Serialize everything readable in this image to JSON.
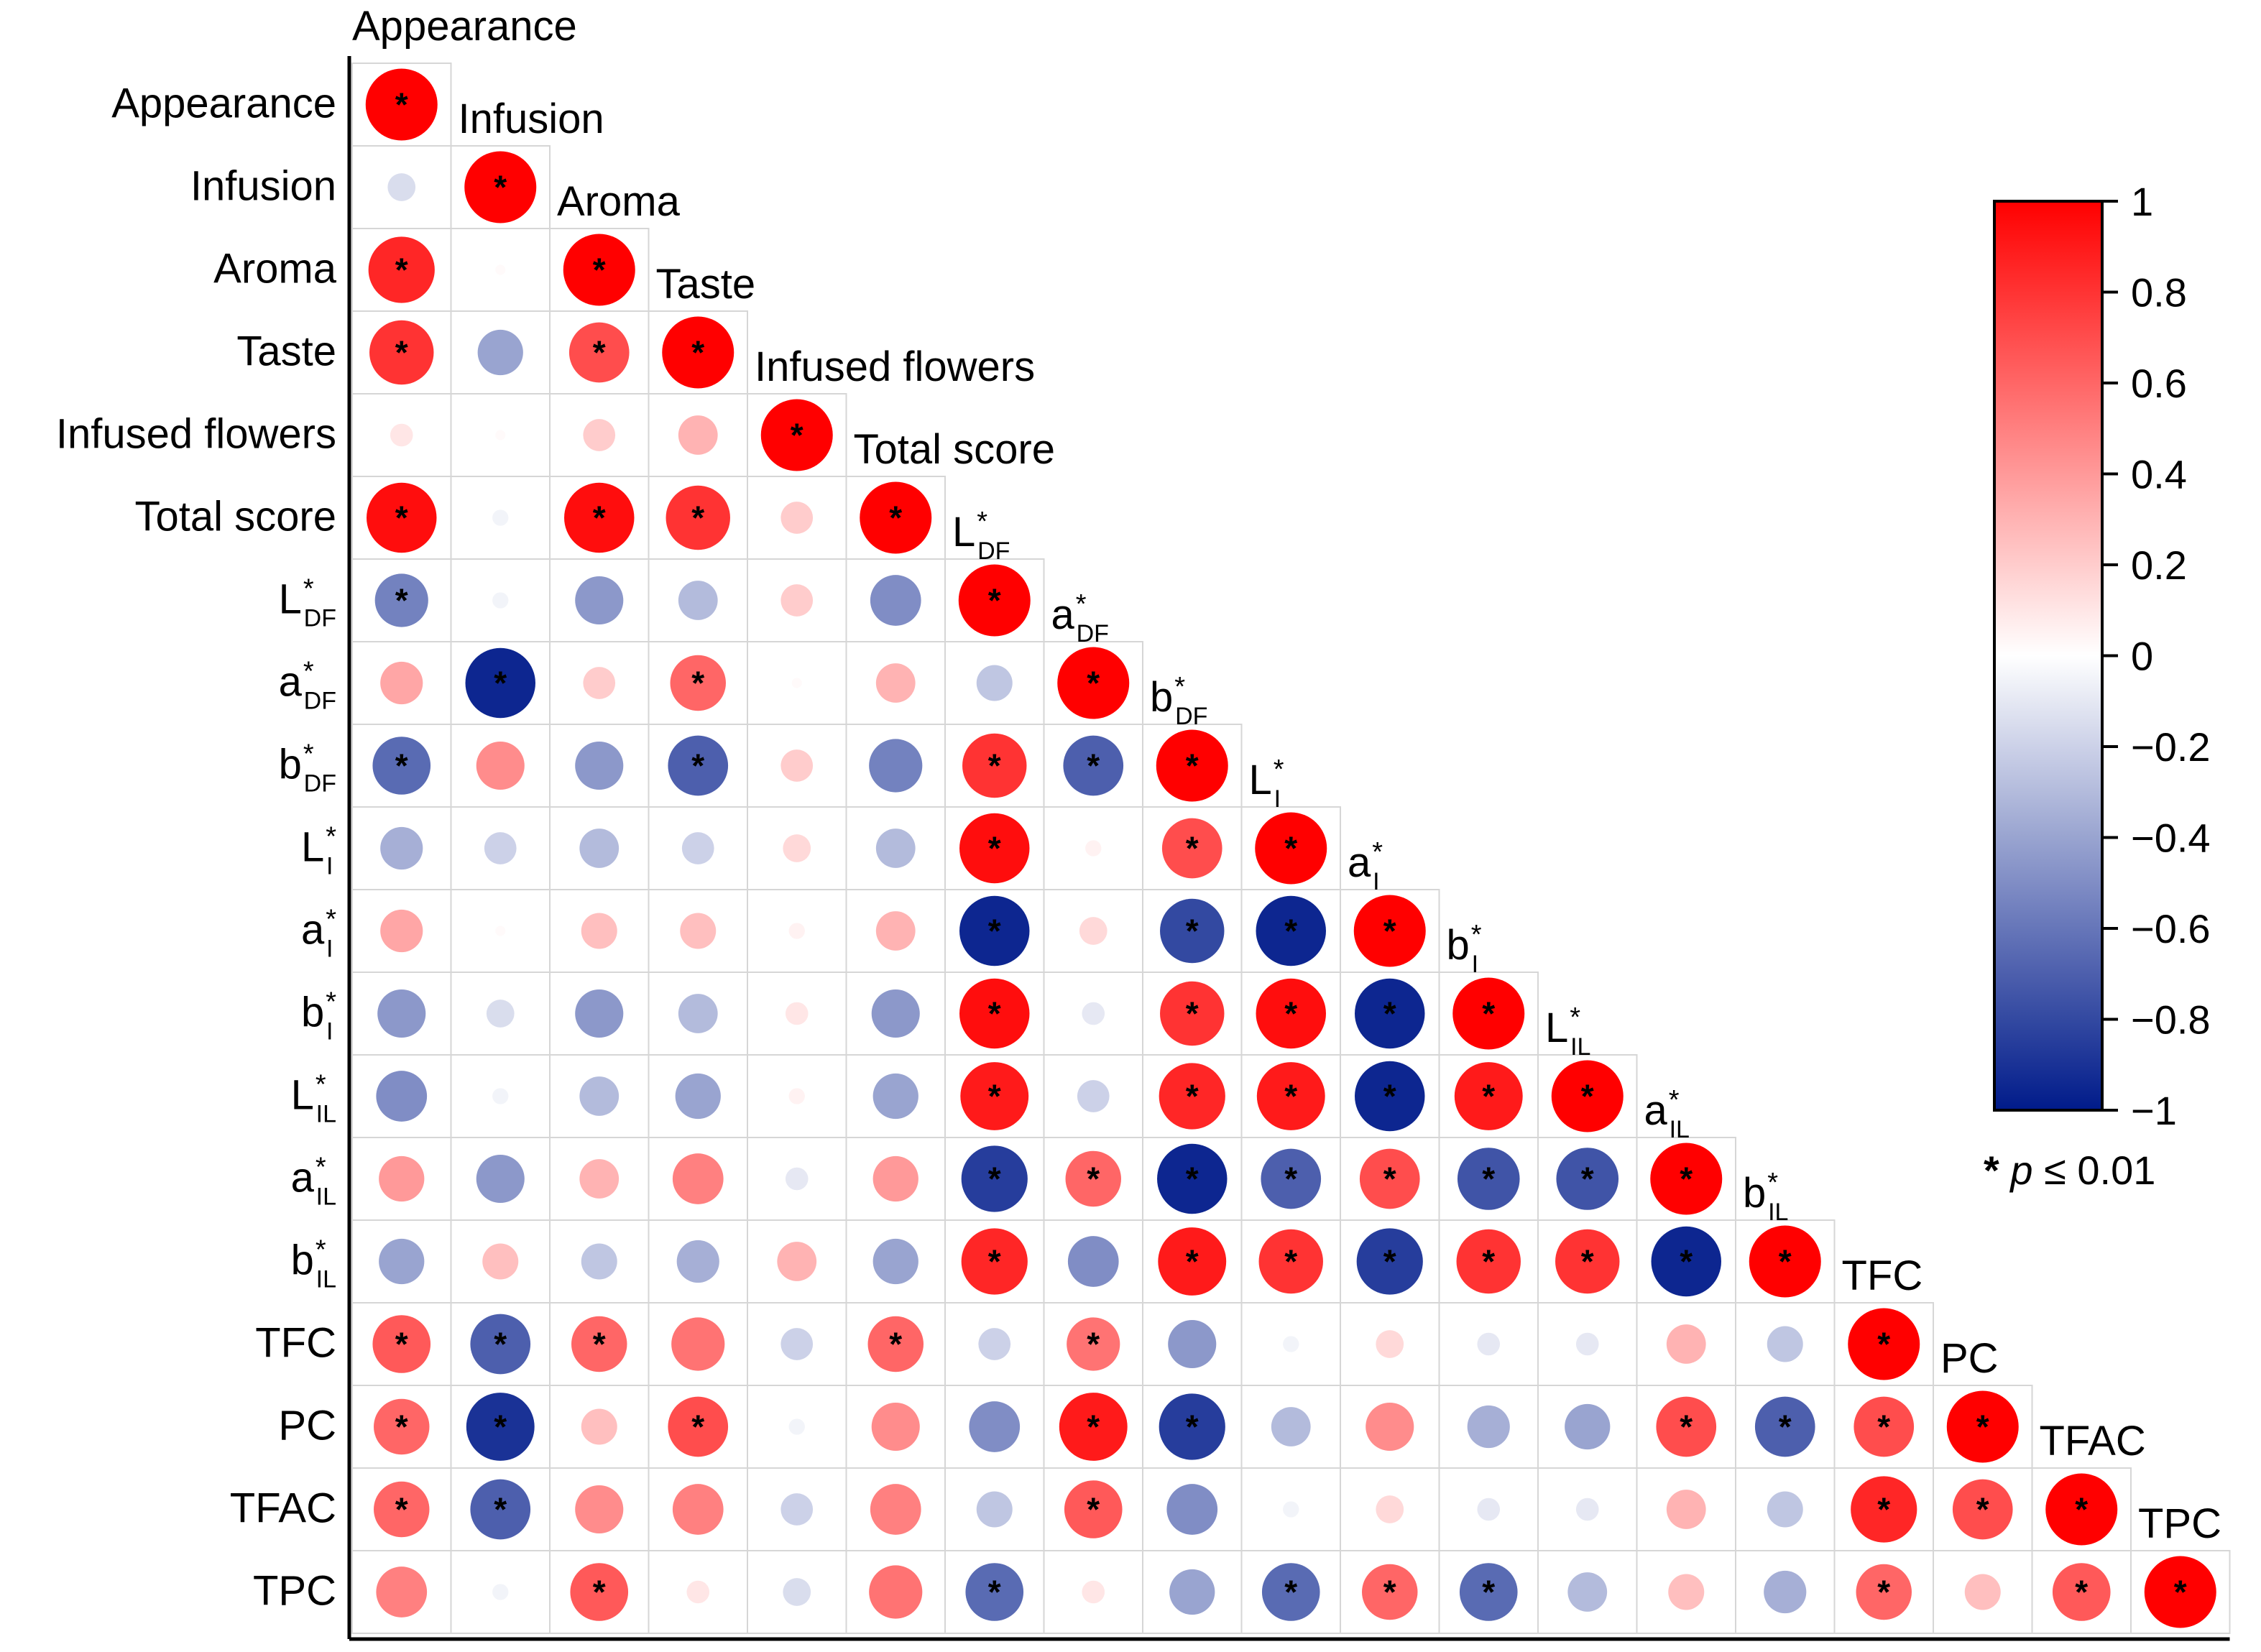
{
  "chart_data": {
    "type": "heatmap",
    "subtype": "correlation-circles-lower-triangle",
    "variables": [
      {
        "base": "Appearance",
        "sub": "",
        "star": false
      },
      {
        "base": "Infusion",
        "sub": "",
        "star": false
      },
      {
        "base": "Aroma",
        "sub": "",
        "star": false
      },
      {
        "base": "Taste",
        "sub": "",
        "star": false
      },
      {
        "base": "Infused flowers",
        "sub": "",
        "star": false
      },
      {
        "base": "Total score",
        "sub": "",
        "star": false
      },
      {
        "base": "L",
        "sub": "DF",
        "star": true
      },
      {
        "base": "a",
        "sub": "DF",
        "star": true
      },
      {
        "base": "b",
        "sub": "DF",
        "star": true
      },
      {
        "base": "L",
        "sub": "I",
        "star": true
      },
      {
        "base": "a",
        "sub": "I",
        "star": true
      },
      {
        "base": "b",
        "sub": "I",
        "star": true
      },
      {
        "base": "L",
        "sub": "IL",
        "star": true
      },
      {
        "base": "a",
        "sub": "IL",
        "star": true
      },
      {
        "base": "b",
        "sub": "IL",
        "star": true
      },
      {
        "base": "TFC",
        "sub": "",
        "star": false
      },
      {
        "base": "PC",
        "sub": "",
        "star": false
      },
      {
        "base": "TFAC",
        "sub": "",
        "star": false
      },
      {
        "base": "TPC",
        "sub": "",
        "star": false
      }
    ],
    "matrix": [
      [
        1.0
      ],
      [
        -0.15,
        1.0
      ],
      [
        0.85,
        0.02,
        1.0
      ],
      [
        0.8,
        -0.4,
        0.7,
        1.0
      ],
      [
        0.1,
        0.02,
        0.2,
        0.3,
        1.0
      ],
      [
        0.95,
        -0.05,
        0.95,
        0.8,
        0.2,
        1.0
      ],
      [
        -0.55,
        -0.05,
        -0.45,
        -0.3,
        0.2,
        -0.5,
        1.0
      ],
      [
        0.35,
        -0.95,
        0.2,
        0.6,
        0.02,
        0.3,
        -0.25,
        1.0
      ],
      [
        -0.65,
        0.45,
        -0.45,
        -0.7,
        0.2,
        -0.55,
        0.8,
        -0.7,
        1.0
      ],
      [
        -0.35,
        -0.2,
        -0.3,
        -0.2,
        0.15,
        -0.3,
        0.95,
        0.05,
        0.7,
        1.0
      ],
      [
        0.35,
        0.02,
        0.25,
        0.25,
        0.05,
        0.3,
        -0.95,
        0.15,
        -0.8,
        -0.95,
        1.0
      ],
      [
        -0.45,
        -0.15,
        -0.45,
        -0.3,
        0.1,
        -0.45,
        0.95,
        -0.1,
        0.8,
        0.95,
        -0.95,
        1.0
      ],
      [
        -0.5,
        -0.05,
        -0.3,
        -0.4,
        0.05,
        -0.4,
        0.9,
        -0.2,
        0.85,
        0.9,
        -0.95,
        0.9,
        1.0
      ],
      [
        0.4,
        -0.45,
        0.3,
        0.5,
        -0.1,
        0.4,
        -0.85,
        0.6,
        -0.95,
        -0.7,
        0.7,
        -0.75,
        -0.75,
        1.0
      ],
      [
        -0.4,
        0.25,
        -0.25,
        -0.35,
        0.3,
        -0.4,
        0.85,
        -0.5,
        0.9,
        0.8,
        -0.85,
        0.8,
        0.8,
        -0.95,
        1.0
      ],
      [
        0.65,
        -0.7,
        0.6,
        0.55,
        -0.2,
        0.6,
        -0.2,
        0.55,
        -0.45,
        -0.05,
        0.15,
        -0.1,
        -0.1,
        0.3,
        -0.25,
        1.0
      ],
      [
        0.6,
        -0.9,
        0.25,
        0.7,
        -0.05,
        0.45,
        -0.5,
        0.9,
        -0.85,
        -0.3,
        0.45,
        -0.35,
        -0.4,
        0.7,
        -0.7,
        0.7,
        1.0
      ],
      [
        0.6,
        -0.7,
        0.45,
        0.5,
        -0.2,
        0.5,
        -0.25,
        0.65,
        -0.5,
        -0.05,
        0.15,
        -0.1,
        -0.1,
        0.3,
        -0.25,
        0.85,
        0.7,
        1.0
      ],
      [
        0.5,
        -0.05,
        0.65,
        0.1,
        -0.15,
        0.55,
        -0.65,
        0.1,
        -0.4,
        -0.65,
        0.6,
        -0.65,
        -0.3,
        0.25,
        -0.35,
        0.6,
        0.25,
        0.65,
        1.0
      ]
    ],
    "significant": [
      [
        0,
        0
      ],
      [
        1,
        1
      ],
      [
        2,
        0
      ],
      [
        2,
        2
      ],
      [
        3,
        0
      ],
      [
        3,
        2
      ],
      [
        3,
        3
      ],
      [
        4,
        4
      ],
      [
        5,
        0
      ],
      [
        5,
        2
      ],
      [
        5,
        3
      ],
      [
        5,
        5
      ],
      [
        6,
        0
      ],
      [
        6,
        6
      ],
      [
        7,
        1
      ],
      [
        7,
        3
      ],
      [
        7,
        7
      ],
      [
        8,
        0
      ],
      [
        8,
        3
      ],
      [
        8,
        6
      ],
      [
        8,
        7
      ],
      [
        8,
        8
      ],
      [
        9,
        6
      ],
      [
        9,
        8
      ],
      [
        9,
        9
      ],
      [
        10,
        6
      ],
      [
        10,
        8
      ],
      [
        10,
        9
      ],
      [
        10,
        10
      ],
      [
        11,
        6
      ],
      [
        11,
        8
      ],
      [
        11,
        9
      ],
      [
        11,
        10
      ],
      [
        11,
        11
      ],
      [
        12,
        6
      ],
      [
        12,
        8
      ],
      [
        12,
        9
      ],
      [
        12,
        10
      ],
      [
        12,
        11
      ],
      [
        12,
        12
      ],
      [
        13,
        6
      ],
      [
        13,
        7
      ],
      [
        13,
        8
      ],
      [
        13,
        9
      ],
      [
        13,
        10
      ],
      [
        13,
        11
      ],
      [
        13,
        12
      ],
      [
        13,
        13
      ],
      [
        14,
        6
      ],
      [
        14,
        8
      ],
      [
        14,
        9
      ],
      [
        14,
        10
      ],
      [
        14,
        11
      ],
      [
        14,
        12
      ],
      [
        14,
        13
      ],
      [
        14,
        14
      ],
      [
        15,
        0
      ],
      [
        15,
        1
      ],
      [
        15,
        2
      ],
      [
        15,
        5
      ],
      [
        15,
        7
      ],
      [
        15,
        15
      ],
      [
        16,
        0
      ],
      [
        16,
        1
      ],
      [
        16,
        3
      ],
      [
        16,
        7
      ],
      [
        16,
        8
      ],
      [
        16,
        13
      ],
      [
        16,
        14
      ],
      [
        16,
        15
      ],
      [
        16,
        16
      ],
      [
        17,
        0
      ],
      [
        17,
        1
      ],
      [
        17,
        7
      ],
      [
        17,
        15
      ],
      [
        17,
        16
      ],
      [
        17,
        17
      ],
      [
        18,
        2
      ],
      [
        18,
        6
      ],
      [
        18,
        9
      ],
      [
        18,
        10
      ],
      [
        18,
        11
      ],
      [
        18,
        15
      ],
      [
        18,
        17
      ],
      [
        18,
        18
      ]
    ],
    "significance_symbol": "*",
    "color_scale": {
      "min": -1,
      "max": 1,
      "ticks": [
        1,
        0.8,
        0.6,
        0.4,
        0.2,
        0,
        -0.2,
        -0.4,
        -0.6,
        -0.8,
        -1
      ],
      "tick_labels": [
        "1",
        "0.8",
        "0.6",
        "0.4",
        "0.2",
        "0",
        "−0.2",
        "−0.4",
        "−0.6",
        "−0.8",
        "−1"
      ],
      "colors": {
        "negative": "#001b8a",
        "zero": "#ffffff",
        "positive": "#ff0000"
      }
    },
    "legend_note": {
      "symbol": "*",
      "text": "p ≤ 0.01"
    },
    "title": "",
    "xlabel": "",
    "ylabel": ""
  }
}
